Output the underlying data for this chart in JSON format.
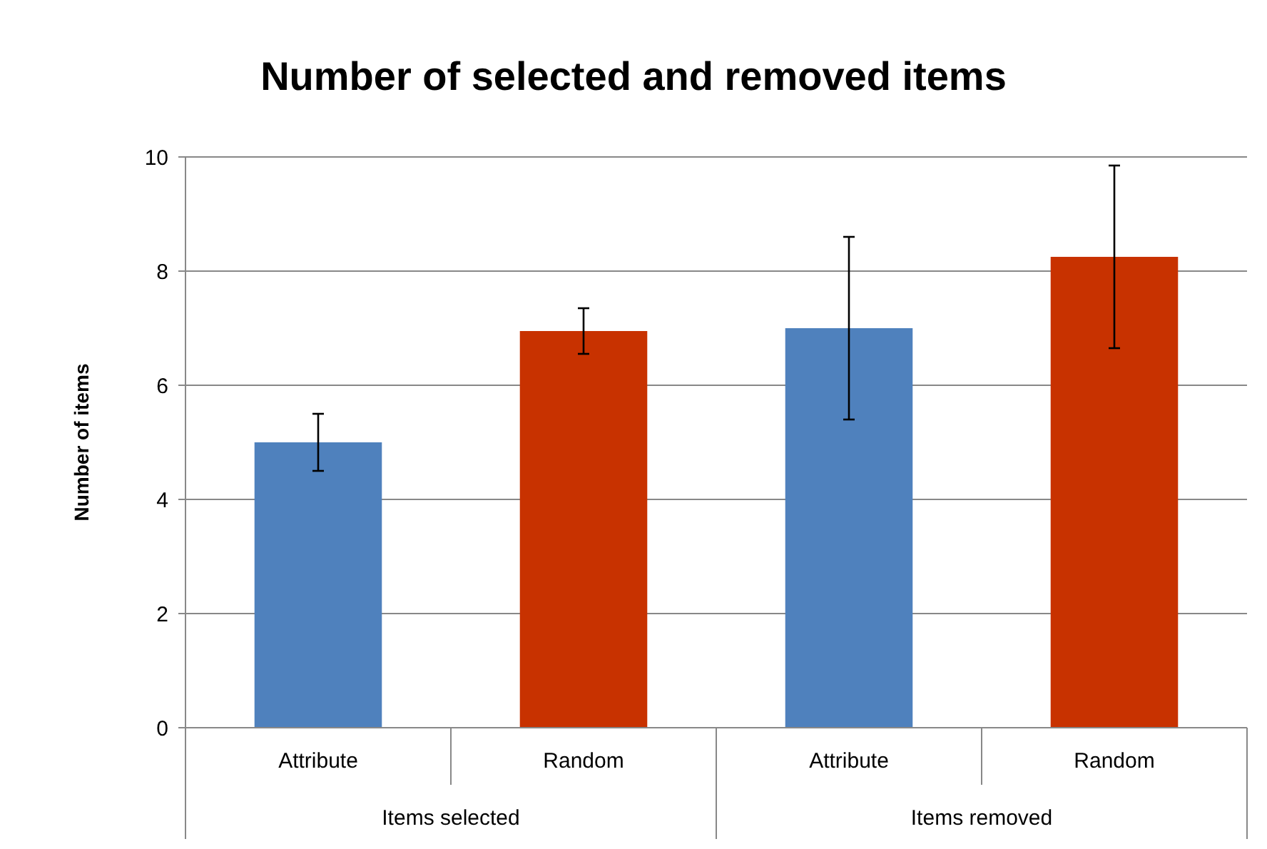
{
  "chart_data": {
    "type": "bar",
    "title": "Number of selected and removed items",
    "ylabel": "Number of items",
    "categories": [
      "Attribute",
      "Random",
      "Attribute",
      "Random"
    ],
    "values": [
      5.0,
      6.95,
      7.0,
      8.25
    ],
    "errors": [
      0.5,
      0.4,
      1.6,
      1.6
    ],
    "colors": [
      "#4f81bd",
      "#c83200",
      "#4f81bd",
      "#c83200"
    ],
    "ylim": [
      0,
      10
    ],
    "yticks": [
      0,
      2,
      4,
      6,
      8,
      10
    ],
    "grid": "y",
    "annotations": [
      "Items selected",
      "Items removed"
    ]
  }
}
